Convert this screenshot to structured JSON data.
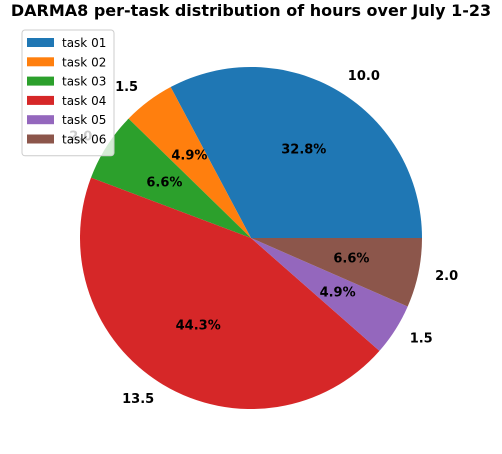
{
  "chart_data": {
    "type": "pie",
    "title": "DARMA8 per-task distribution of hours over July 1-23",
    "labels": [
      "task 01",
      "task 02",
      "task 03",
      "task 04",
      "task 05",
      "task 06"
    ],
    "values": [
      10.0,
      1.5,
      2.0,
      13.5,
      1.5,
      2.0
    ],
    "value_labels": [
      "10.0",
      "1.5",
      "2.0",
      "13.5",
      "1.5",
      "2.0"
    ],
    "percent_labels": [
      "32.8%",
      "4.9%",
      "6.6%",
      "44.3%",
      "4.9%",
      "6.6%"
    ],
    "colors": [
      "#1f77b4",
      "#ff7f0e",
      "#2ca02c",
      "#d62728",
      "#9467bd",
      "#8c564b"
    ],
    "start_angle_deg": 0,
    "direction": "counterclockwise",
    "legend_position": "top-left"
  }
}
